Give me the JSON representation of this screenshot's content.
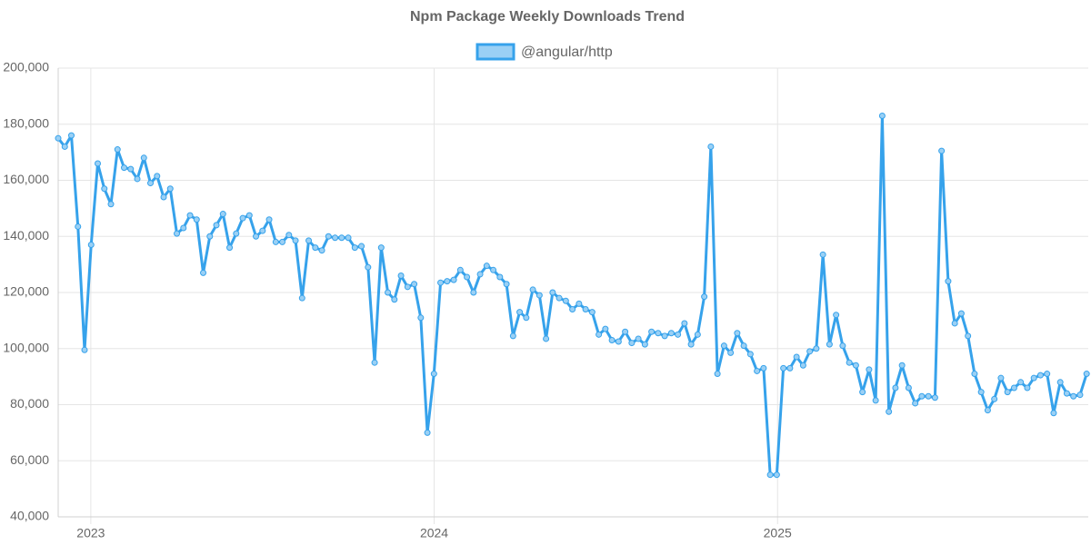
{
  "chart_data": {
    "type": "line",
    "title": "Npm Package Weekly Downloads Trend",
    "x": [
      2022.905,
      2022.9242,
      2022.9434,
      2022.9626,
      2022.9818,
      2023.001,
      2023.0202,
      2023.0394,
      2023.0586,
      2023.0778,
      2023.097,
      2023.1162,
      2023.1354,
      2023.1546,
      2023.1738,
      2023.193,
      2023.2122,
      2023.2314,
      2023.2506,
      2023.2698,
      2023.289,
      2023.3082,
      2023.3274,
      2023.3466,
      2023.3658,
      2023.385,
      2023.4042,
      2023.4234,
      2023.4426,
      2023.4618,
      2023.481,
      2023.5002,
      2023.5194,
      2023.5386,
      2023.5578,
      2023.577,
      2023.5962,
      2023.6154,
      2023.6346,
      2023.6538,
      2023.673,
      2023.6922,
      2023.7114,
      2023.7306,
      2023.7498,
      2023.769,
      2023.7882,
      2023.8074,
      2023.8266,
      2023.8458,
      2023.865,
      2023.8842,
      2023.9034,
      2023.9226,
      2023.9418,
      2023.961,
      2023.9802,
      2023.9994,
      2024.0186,
      2024.0378,
      2024.057,
      2024.0762,
      2024.0954,
      2024.1146,
      2024.1338,
      2024.153,
      2024.1722,
      2024.1914,
      2024.2106,
      2024.2298,
      2024.249,
      2024.2682,
      2024.2874,
      2024.3066,
      2024.3258,
      2024.345,
      2024.3642,
      2024.3834,
      2024.4026,
      2024.4218,
      2024.441,
      2024.4602,
      2024.4794,
      2024.4986,
      2024.5178,
      2024.537,
      2024.5562,
      2024.5754,
      2024.5946,
      2024.6138,
      2024.633,
      2024.6522,
      2024.6714,
      2024.6906,
      2024.7098,
      2024.729,
      2024.7482,
      2024.7674,
      2024.7866,
      2024.8058,
      2024.825,
      2024.8442,
      2024.8634,
      2024.8826,
      2024.9018,
      2024.921,
      2024.9402,
      2024.9594,
      2024.9786,
      2024.9978,
      2025.017,
      2025.0362,
      2025.0554,
      2025.0746,
      2025.0938,
      2025.113,
      2025.1322,
      2025.1514,
      2025.1706,
      2025.1898,
      2025.209,
      2025.2282,
      2025.2474,
      2025.2666,
      2025.2858,
      2025.305,
      2025.3242,
      2025.3434,
      2025.3626,
      2025.3818,
      2025.401,
      2025.4202,
      2025.4394,
      2025.4586,
      2025.4778,
      2025.497,
      2025.5162,
      2025.5354,
      2025.5546,
      2025.5738,
      2025.593,
      2025.6122,
      2025.6314,
      2025.6506,
      2025.6698,
      2025.689,
      2025.7082,
      2025.7274,
      2025.7466,
      2025.7658,
      2025.785,
      2025.8042,
      2025.8234,
      2025.8426,
      2025.8618,
      2025.881,
      2025.9002
    ],
    "series": [
      {
        "name": "@angular/http",
        "color": "#36a2eb",
        "fill": "#9ad0f5",
        "values": [
          175000,
          172000,
          176000,
          143500,
          99500,
          137000,
          166000,
          157000,
          151500,
          171000,
          164500,
          164000,
          160500,
          168000,
          159000,
          161500,
          154000,
          157000,
          141000,
          143000,
          147500,
          146000,
          127000,
          140000,
          144000,
          148000,
          136000,
          141000,
          146500,
          147500,
          140000,
          142000,
          146000,
          138000,
          138000,
          140500,
          138500,
          118000,
          138500,
          136000,
          135000,
          140000,
          139500,
          139500,
          139500,
          136000,
          136500,
          129000,
          95000,
          136000,
          120000,
          117500,
          126000,
          122000,
          123000,
          111000,
          70000,
          91000,
          123500,
          124000,
          124500,
          128000,
          125500,
          120000,
          126500,
          129500,
          128000,
          125500,
          123000,
          104500,
          113000,
          111000,
          121000,
          119000,
          103500,
          120000,
          118000,
          117000,
          114000,
          116000,
          114000,
          113000,
          105000,
          107000,
          103000,
          102500,
          106000,
          102000,
          103500,
          101500,
          106000,
          105500,
          104500,
          105500,
          105000,
          109000,
          101500,
          105000,
          118500,
          172000,
          91000,
          101000,
          98500,
          105500,
          101000,
          98000,
          92000,
          93000,
          55000,
          55000,
          93000,
          93000,
          97000,
          94000,
          99000,
          100000,
          133500,
          101500,
          112000,
          101000,
          95000,
          94000,
          84500,
          92500,
          81500,
          183000,
          77500,
          86000,
          94000,
          86000,
          80500,
          83000,
          83000,
          82500,
          170500,
          124000,
          109000,
          112500,
          104500,
          91000,
          84500,
          78000,
          82000,
          89500,
          84500,
          86000,
          88000,
          86000,
          89500,
          90500,
          91000,
          77000,
          88000,
          84000,
          83000,
          83500,
          91000
        ]
      }
    ],
    "xlim": [
      2022.905,
      2025.905
    ],
    "xticks": [
      2023,
      2024,
      2025
    ],
    "ylim": [
      40000,
      200000
    ],
    "yticks": [
      {
        "value": 40000,
        "label": "40,000"
      },
      {
        "value": 60000,
        "label": "60,000"
      },
      {
        "value": 80000,
        "label": "80,000"
      },
      {
        "value": 100000,
        "label": "100,000"
      },
      {
        "value": 120000,
        "label": "120,000"
      },
      {
        "value": 140000,
        "label": "140,000"
      },
      {
        "value": 160000,
        "label": "160,000"
      },
      {
        "value": 180000,
        "label": "180,000"
      },
      {
        "value": 200000,
        "label": "200,000"
      }
    ],
    "grid": true,
    "legend": "top"
  }
}
